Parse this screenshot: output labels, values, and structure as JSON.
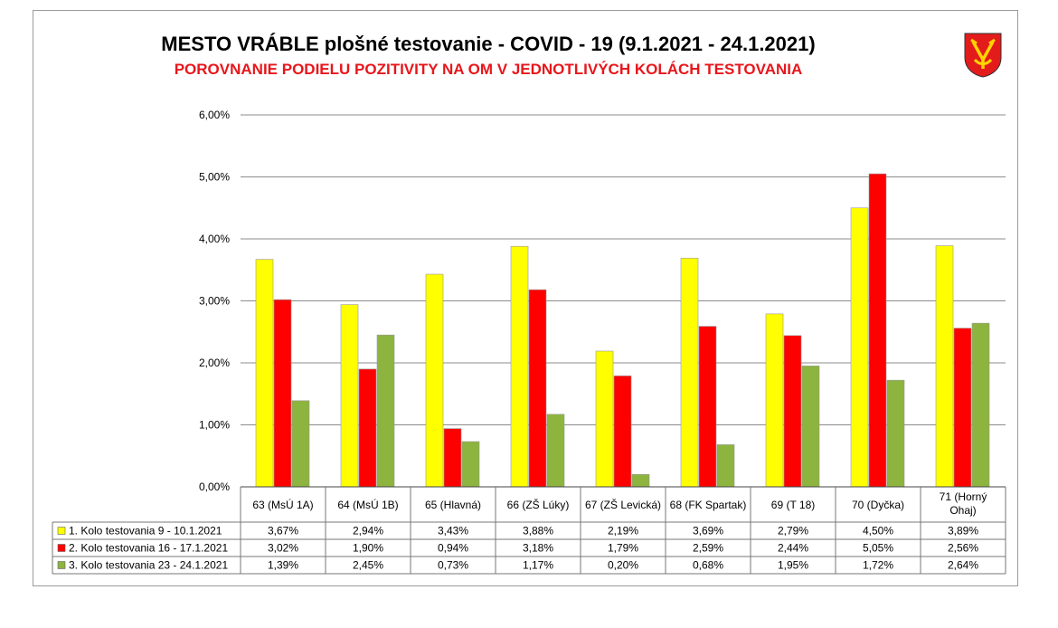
{
  "header": {
    "title": "MESTO VRÁBLE plošné testovanie - COVID - 19 (9.1.2021 - 24.1.2021)",
    "subtitle": "POROVNANIE PODIELU POZITIVITY NA OM V JEDNOTLIVÝCH KOLÁCH TESTOVANIA"
  },
  "colors": {
    "series1": "#ffff00",
    "series2": "#ff0000",
    "series3": "#8db43e",
    "subtitle": "#e8161b",
    "grid": "#8c8c8c"
  },
  "chart_data": {
    "type": "bar",
    "categories": [
      [
        "63 (MsÚ 1A)"
      ],
      [
        "64 (MsÚ 1B)"
      ],
      [
        "65 (Hlavná)"
      ],
      [
        "66 (ZŠ Lúky)"
      ],
      [
        "67 (ZŠ Levická)"
      ],
      [
        "68 (FK Spartak)"
      ],
      [
        "69 (T 18)"
      ],
      [
        "70 (Dyčka)"
      ],
      [
        "71 (Horný",
        "Ohaj)"
      ]
    ],
    "series": [
      {
        "name": "1. Kolo testovania 9 - 10.1.2021",
        "values": [
          3.67,
          2.94,
          3.43,
          3.88,
          2.19,
          3.69,
          2.79,
          4.5,
          3.89
        ],
        "labels": [
          "3,67%",
          "2,94%",
          "3,43%",
          "3,88%",
          "2,19%",
          "3,69%",
          "2,79%",
          "4,50%",
          "3,89%"
        ]
      },
      {
        "name": "2. Kolo testovania 16 - 17.1.2021",
        "values": [
          3.02,
          1.9,
          0.94,
          3.18,
          1.79,
          2.59,
          2.44,
          5.05,
          2.56
        ],
        "labels": [
          "3,02%",
          "1,90%",
          "0,94%",
          "3,18%",
          "1,79%",
          "2,59%",
          "2,44%",
          "5,05%",
          "2,56%"
        ]
      },
      {
        "name": "3. Kolo testovania 23 - 24.1.2021",
        "values": [
          1.39,
          2.45,
          0.73,
          1.17,
          0.2,
          0.68,
          1.95,
          1.72,
          2.64
        ],
        "labels": [
          "1,39%",
          "2,45%",
          "0,73%",
          "1,17%",
          "0,20%",
          "0,68%",
          "1,95%",
          "1,72%",
          "2,64%"
        ]
      }
    ],
    "ylim": [
      0,
      6
    ],
    "yticks": [
      "0,00%",
      "1,00%",
      "2,00%",
      "3,00%",
      "4,00%",
      "5,00%",
      "6,00%"
    ],
    "grid": true,
    "data_table": true,
    "legend": "data-table-left"
  }
}
